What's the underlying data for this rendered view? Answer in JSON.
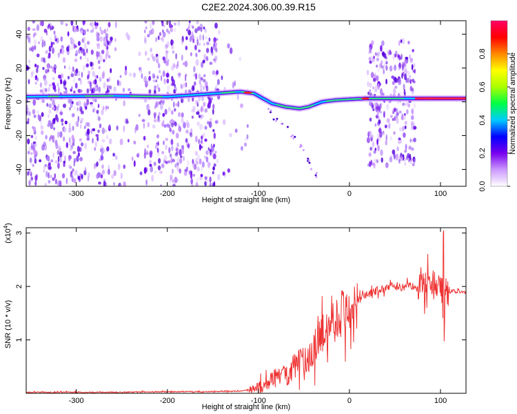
{
  "title": "C2E2.2024.306.00.39.R15",
  "colors": {
    "snr_line": "#ee3333",
    "band_core": "#33dd88",
    "band_edge": "#5500ee",
    "scatter": "#8833ee"
  },
  "chart_data": [
    {
      "type": "heatmap",
      "xlabel": "Height of straight line (km)",
      "ylabel": "Frequency (Hz)",
      "xlim": [
        -355,
        128
      ],
      "ylim": [
        -50,
        48
      ],
      "x_ticks": [
        -300,
        -200,
        -100,
        0,
        100
      ],
      "y_ticks": [
        -40,
        -20,
        0,
        20,
        40
      ],
      "x_tick_labels": [
        "-300",
        "-200",
        "-100",
        "0",
        "100"
      ],
      "y_tick_labels": [
        "-40",
        "-20",
        "0",
        "20",
        "40"
      ],
      "colorbar": {
        "label": "Normalized spectral amplitude",
        "range": [
          0,
          1
        ],
        "ticks": [
          0.0,
          0.2,
          0.4,
          0.6,
          0.8
        ],
        "tick_labels": [
          "0.0",
          "0.2",
          "0.4",
          "0.6",
          "0.8"
        ],
        "colors": [
          "#ffffff",
          "#cc99ff",
          "#7700ee",
          "#0000ff",
          "#00ccff",
          "#00ff44",
          "#aaff00",
          "#ffff00",
          "#ff8800",
          "#ff0000",
          "#ff0066"
        ]
      },
      "scatter_regions": [
        {
          "x": [
            -355,
            -262
          ],
          "freq": [
            -50,
            48
          ],
          "density": 1.0
        },
        {
          "x": [
            -225,
            -143
          ],
          "freq": [
            -50,
            48
          ],
          "density": 0.9
        },
        {
          "x": [
            -262,
            -225
          ],
          "freq": [
            -50,
            48
          ],
          "density": 0.25
        },
        {
          "x": [
            -143,
            -110
          ],
          "freq": [
            -50,
            48
          ],
          "density": 0.1
        },
        {
          "x": [
            20,
            72
          ],
          "freq": [
            -38,
            36
          ],
          "density": 0.85
        }
      ],
      "ridge": {
        "x": [
          -355,
          -260,
          -200,
          -145,
          -120,
          -105,
          -95,
          -85,
          -70,
          -55,
          -45,
          -30,
          -15,
          0,
          20,
          50,
          75,
          128
        ],
        "freq": [
          3,
          3.5,
          3,
          5,
          6,
          5,
          2,
          -1,
          -3,
          -4,
          -3,
          0,
          1,
          1.5,
          2,
          2,
          2,
          2
        ]
      },
      "tail": {
        "x": [
          -90,
          -70,
          -50,
          -40,
          -35
        ],
        "freq": [
          -5,
          -15,
          -30,
          -40,
          -45
        ]
      }
    },
    {
      "type": "line",
      "xlabel": "Height of straight line (km)",
      "ylabel": "SNR (10 * v/v)",
      "y_multiplier": "(x10",
      "y_multiplier_exp": "4",
      "y_multiplier_close": ")",
      "xlim": [
        -355,
        128
      ],
      "ylim": [
        0,
        3.1
      ],
      "x_ticks": [
        -300,
        -200,
        -100,
        0,
        100
      ],
      "y_ticks": [
        1,
        2,
        3
      ],
      "x_tick_labels": [
        "-300",
        "-200",
        "-100",
        "0",
        "100"
      ],
      "y_tick_labels": [
        "1",
        "2",
        "3"
      ],
      "series": [
        {
          "x": [
            -355,
            -300,
            -250,
            -200,
            -150,
            -120,
            -100,
            -90,
            -80,
            -70,
            -60,
            -50,
            -40,
            -30,
            -20,
            -10,
            0,
            10,
            20,
            30,
            40,
            60,
            80,
            95,
            105,
            115,
            128
          ],
          "y": [
            0.02,
            0.02,
            0.02,
            0.03,
            0.03,
            0.04,
            0.1,
            0.2,
            0.3,
            0.35,
            0.5,
            0.6,
            0.8,
            1.1,
            1.3,
            1.5,
            1.55,
            1.75,
            1.85,
            1.92,
            1.97,
            2.0,
            2.02,
            2.0,
            1.9,
            1.9,
            1.9
          ]
        }
      ]
    }
  ]
}
